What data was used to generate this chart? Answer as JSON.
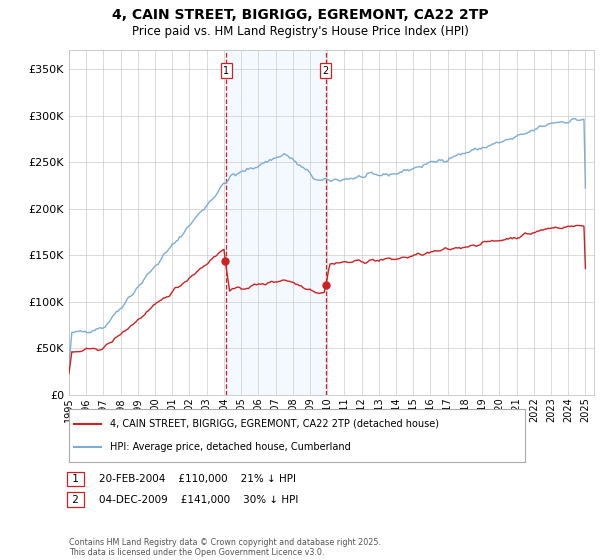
{
  "title": "4, CAIN STREET, BIGRIGG, EGREMONT, CA22 2TP",
  "subtitle": "Price paid vs. HM Land Registry's House Price Index (HPI)",
  "ylim": [
    0,
    370000
  ],
  "yticks": [
    0,
    50000,
    100000,
    150000,
    200000,
    250000,
    300000,
    350000
  ],
  "hpi_color": "#7dadd4",
  "price_color": "#cc2222",
  "shade_color": "#ddeeff",
  "vline_color": "#cc2222",
  "marker_color": "#cc2222",
  "annotation1": "20-FEB-2004    £110,000    21% ↓ HPI",
  "annotation2": "04-DEC-2009    £141,000    30% ↓ HPI",
  "legend1": "4, CAIN STREET, BIGRIGG, EGREMONT, CA22 2TP (detached house)",
  "legend2": "HPI: Average price, detached house, Cumberland",
  "footer": "Contains HM Land Registry data © Crown copyright and database right 2025.\nThis data is licensed under the Open Government Licence v3.0.",
  "background_color": "#ffffff",
  "grid_color": "#cccccc",
  "purchase1_year": 2004.125,
  "purchase1_price": 110000,
  "purchase2_year": 2009.917,
  "purchase2_price": 141000
}
